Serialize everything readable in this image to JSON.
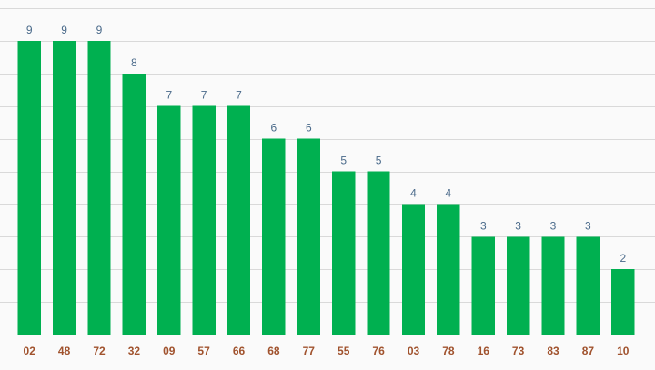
{
  "chart_data": {
    "type": "bar",
    "categories": [
      "02",
      "48",
      "72",
      "32",
      "09",
      "57",
      "66",
      "68",
      "77",
      "55",
      "76",
      "03",
      "78",
      "16",
      "73",
      "83",
      "87",
      "10"
    ],
    "values": [
      9,
      9,
      9,
      8,
      7,
      7,
      7,
      6,
      6,
      5,
      5,
      4,
      4,
      3,
      3,
      3,
      3,
      2
    ],
    "title": "",
    "xlabel": "",
    "ylabel": "",
    "ylim": [
      0,
      10
    ],
    "grid": true,
    "legend": "none",
    "colors": {
      "bar": "#00b050",
      "value_label": "#4a6a8a",
      "tick_label": "#a0522d",
      "background": "#fafafa"
    }
  }
}
